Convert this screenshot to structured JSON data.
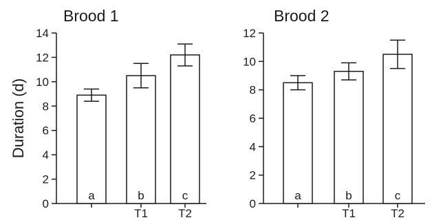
{
  "chart_data": [
    {
      "type": "bar",
      "title": "Brood 1",
      "ylabel": "Duration (d)",
      "xlabel": "",
      "categories": [
        "",
        "T1",
        "T2"
      ],
      "values": [
        8.9,
        10.5,
        12.2
      ],
      "error": [
        0.5,
        1.0,
        0.9
      ],
      "bar_labels": [
        "a",
        "b",
        "c"
      ],
      "ylim": [
        0,
        14
      ],
      "yticks": [
        0,
        2,
        4,
        6,
        8,
        10,
        12,
        14
      ],
      "grid": false
    },
    {
      "type": "bar",
      "title": "Brood 2",
      "ylabel": "",
      "xlabel": "",
      "categories": [
        "",
        "T1",
        "T2"
      ],
      "values": [
        8.5,
        9.3,
        10.5
      ],
      "error": [
        0.5,
        0.6,
        1.0
      ],
      "bar_labels": [
        "a",
        "b",
        "c"
      ],
      "ylim": [
        0,
        12
      ],
      "yticks": [
        0,
        2,
        4,
        6,
        8,
        10,
        12
      ],
      "grid": false
    }
  ]
}
